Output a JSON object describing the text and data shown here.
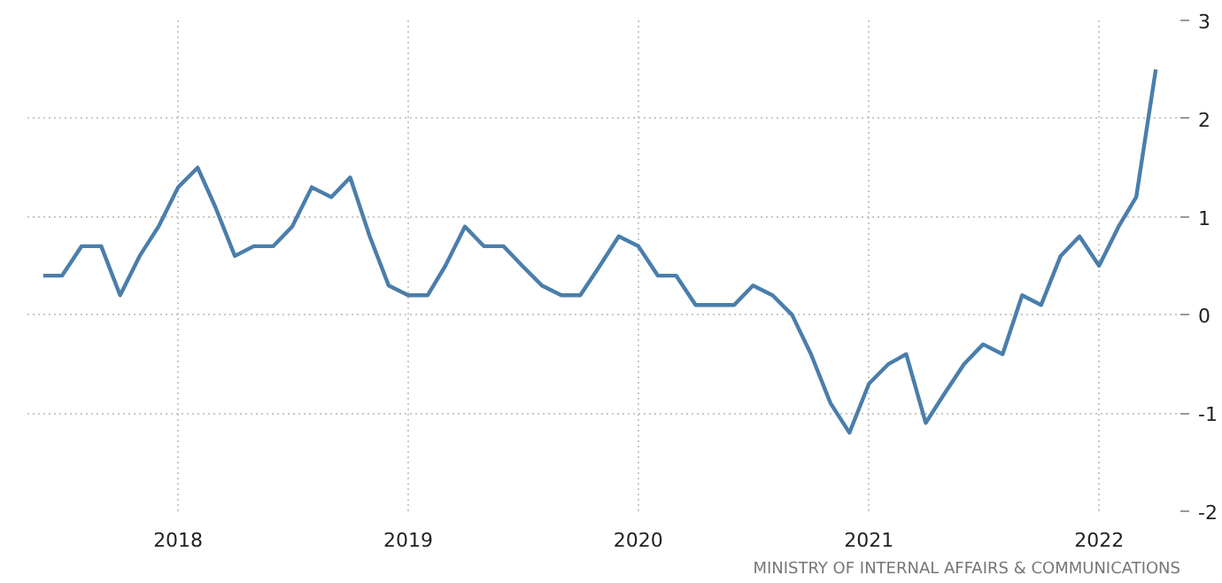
{
  "chart_data": {
    "type": "line",
    "x": [
      "2017-06",
      "2017-07",
      "2017-08",
      "2017-09",
      "2017-10",
      "2017-11",
      "2017-12",
      "2018-01",
      "2018-02",
      "2018-03",
      "2018-04",
      "2018-05",
      "2018-06",
      "2018-07",
      "2018-08",
      "2018-09",
      "2018-10",
      "2018-11",
      "2018-12",
      "2019-01",
      "2019-02",
      "2019-03",
      "2019-04",
      "2019-05",
      "2019-06",
      "2019-07",
      "2019-08",
      "2019-09",
      "2019-10",
      "2019-11",
      "2019-12",
      "2020-01",
      "2020-02",
      "2020-03",
      "2020-04",
      "2020-05",
      "2020-06",
      "2020-07",
      "2020-08",
      "2020-09",
      "2020-10",
      "2020-11",
      "2020-12",
      "2021-01",
      "2021-02",
      "2021-03",
      "2021-04",
      "2021-05",
      "2021-06",
      "2021-07",
      "2021-08",
      "2021-09",
      "2021-10",
      "2021-11",
      "2021-12",
      "2022-01",
      "2022-02",
      "2022-03",
      "2022-04"
    ],
    "series": [
      {
        "color": "#4a7eab",
        "values": [
          0.4,
          0.4,
          0.7,
          0.7,
          0.2,
          0.6,
          0.9,
          1.3,
          1.5,
          1.1,
          0.6,
          0.7,
          0.7,
          0.9,
          1.3,
          1.2,
          1.4,
          0.8,
          0.3,
          0.2,
          0.2,
          0.5,
          0.9,
          0.7,
          0.7,
          0.5,
          0.3,
          0.2,
          0.2,
          0.5,
          0.8,
          0.7,
          0.4,
          0.4,
          0.1,
          0.1,
          0.1,
          0.3,
          0.2,
          0.0,
          -0.4,
          -0.9,
          -1.2,
          -0.7,
          -0.5,
          -0.4,
          -1.1,
          -0.8,
          -0.5,
          -0.3,
          -0.4,
          0.2,
          0.1,
          0.6,
          0.8,
          0.5,
          0.9,
          1.2,
          2.5
        ]
      }
    ],
    "xlim": [
      "2017-05-07",
      "2022-05-10"
    ],
    "xticks": [
      "2018",
      "2019",
      "2020",
      "2021",
      "2022"
    ],
    "ylim": [
      -2,
      3
    ],
    "yticks": [
      -2,
      -1,
      0,
      1,
      2,
      3
    ],
    "grid": true,
    "marker": "none",
    "line_style": "solid",
    "annotations": [
      "MINISTRY OF INTERNAL AFFAIRS & COMMUNICATIONS"
    ]
  }
}
